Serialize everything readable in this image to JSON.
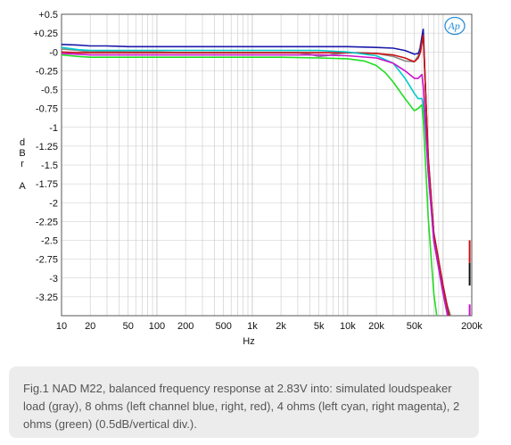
{
  "caption": "Fig.1 NAD M22, balanced frequency response at 2.83V into: simulated loudspeaker load (gray), 8 ohms (left channel blue, right, red), 4 ohms (left cyan, right magenta), 2 ohms (green) (0.5dB/vertical div.).",
  "logo_text": "Ap",
  "chart_data": {
    "type": "line",
    "title": "",
    "xlabel": "Hz",
    "ylabel": "d B r A",
    "ylabel_chars": [
      "d",
      "B",
      "r",
      "A"
    ],
    "x_scale": "log",
    "xlim": [
      10,
      200000
    ],
    "ylim": [
      -3.5,
      0.5
    ],
    "grid": true,
    "x_ticks": [
      10,
      20,
      50,
      100,
      200,
      500,
      1000,
      2000,
      5000,
      10000,
      20000,
      50000,
      200000
    ],
    "x_tick_labels": [
      "10",
      "20",
      "50",
      "100",
      "200",
      "500",
      "1k",
      "2k",
      "5k",
      "10k",
      "20k",
      "50k",
      "200k"
    ],
    "y_ticks": [
      0.5,
      0.25,
      0,
      -0.25,
      -0.5,
      -0.75,
      -1,
      -1.25,
      -1.5,
      -1.75,
      -2,
      -2.25,
      -2.5,
      -2.75,
      -3,
      -3.25
    ],
    "y_tick_labels": [
      "+0.5",
      "+0.25",
      "-0",
      "-0.25",
      "-0.5",
      "-0.75",
      "-1",
      "-1.25",
      "-1.5",
      "-1.75",
      "-2",
      "-2.25",
      "-2.5",
      "-2.75",
      "-3",
      "-3.25"
    ],
    "series": [
      {
        "color": "#888888",
        "x": [
          10,
          15,
          20,
          30,
          50,
          100,
          200,
          500,
          1000,
          2000,
          3000,
          4000,
          5000,
          6000,
          7000,
          10000,
          20000,
          30000,
          40000,
          50000,
          55000,
          60000,
          62000,
          65000,
          70000,
          80000,
          100000,
          120000,
          150000
        ],
        "y": [
          0.04,
          0.02,
          0.0,
          0.01,
          0.0,
          0.0,
          -0.01,
          -0.01,
          -0.01,
          -0.01,
          -0.01,
          -0.03,
          -0.06,
          -0.05,
          -0.03,
          -0.01,
          -0.02,
          -0.06,
          -0.12,
          -0.13,
          -0.05,
          0.2,
          0.3,
          -0.4,
          -1.5,
          -2.5,
          -3.2,
          -3.5,
          -3.7
        ]
      },
      {
        "color": "#1a1aaa",
        "x": [
          10,
          15,
          20,
          30,
          50,
          100,
          200,
          500,
          1000,
          2000,
          5000,
          10000,
          20000,
          30000,
          40000,
          50000,
          55000,
          58000,
          60000,
          62000,
          65000,
          70000,
          80000,
          100000,
          120000
        ],
        "y": [
          0.1,
          0.09,
          0.08,
          0.08,
          0.07,
          0.07,
          0.07,
          0.07,
          0.07,
          0.07,
          0.07,
          0.07,
          0.06,
          0.05,
          0.02,
          -0.03,
          -0.02,
          0.05,
          0.2,
          0.3,
          -0.4,
          -1.4,
          -2.4,
          -3.1,
          -3.6
        ]
      },
      {
        "color": "#cc1111",
        "x": [
          10,
          15,
          20,
          30,
          50,
          100,
          200,
          500,
          1000,
          2000,
          5000,
          10000,
          20000,
          30000,
          40000,
          50000,
          55000,
          58000,
          60000,
          62000,
          65000,
          70000,
          80000,
          100000,
          120000
        ],
        "y": [
          0.0,
          -0.01,
          -0.01,
          -0.01,
          -0.01,
          -0.01,
          -0.01,
          -0.01,
          -0.01,
          -0.01,
          -0.01,
          -0.01,
          -0.02,
          -0.04,
          -0.08,
          -0.13,
          -0.08,
          0.0,
          0.12,
          0.22,
          -0.4,
          -1.4,
          -2.4,
          -3.1,
          -3.6
        ]
      },
      {
        "color": "#00cccc",
        "x": [
          10,
          15,
          20,
          30,
          50,
          100,
          200,
          500,
          1000,
          2000,
          5000,
          10000,
          20000,
          30000,
          40000,
          50000,
          55000,
          60000,
          62000,
          65000,
          70000,
          80000,
          100000,
          120000
        ],
        "y": [
          0.06,
          0.03,
          0.02,
          0.02,
          0.02,
          0.02,
          0.02,
          0.02,
          0.02,
          0.02,
          0.02,
          0.0,
          -0.05,
          -0.15,
          -0.35,
          -0.55,
          -0.62,
          -0.62,
          -0.7,
          -1.0,
          -1.6,
          -2.5,
          -3.2,
          -3.7
        ]
      },
      {
        "color": "#cc11cc",
        "x": [
          10,
          15,
          20,
          30,
          50,
          100,
          200,
          500,
          1000,
          2000,
          5000,
          10000,
          20000,
          30000,
          40000,
          50000,
          55000,
          60000,
          62000,
          65000,
          70000,
          80000,
          100000,
          120000
        ],
        "y": [
          -0.02,
          -0.03,
          -0.04,
          -0.04,
          -0.04,
          -0.04,
          -0.04,
          -0.04,
          -0.04,
          -0.04,
          -0.04,
          -0.05,
          -0.08,
          -0.15,
          -0.25,
          -0.35,
          -0.35,
          -0.3,
          -0.45,
          -0.9,
          -1.6,
          -2.5,
          -3.2,
          -3.7
        ]
      },
      {
        "color": "#22dd22",
        "x": [
          10,
          15,
          20,
          30,
          50,
          100,
          200,
          500,
          1000,
          2000,
          5000,
          10000,
          15000,
          20000,
          25000,
          30000,
          40000,
          50000,
          55000,
          60000,
          62000,
          65000,
          70000,
          80000,
          90000
        ],
        "y": [
          -0.04,
          -0.06,
          -0.07,
          -0.07,
          -0.07,
          -0.07,
          -0.07,
          -0.07,
          -0.07,
          -0.07,
          -0.08,
          -0.09,
          -0.12,
          -0.18,
          -0.28,
          -0.4,
          -0.62,
          -0.78,
          -0.75,
          -0.7,
          -0.9,
          -1.4,
          -2.2,
          -3.2,
          -3.7
        ]
      }
    ],
    "end_markers": [
      {
        "color": "#cc1111",
        "x": 190000,
        "y_from": -2.5,
        "y_to": -2.8
      },
      {
        "color": "#111111",
        "x": 190000,
        "y_from": -2.8,
        "y_to": -3.1
      },
      {
        "color": "#cc11cc",
        "x": 190000,
        "y_from": -3.35,
        "y_to": -3.5
      }
    ]
  }
}
